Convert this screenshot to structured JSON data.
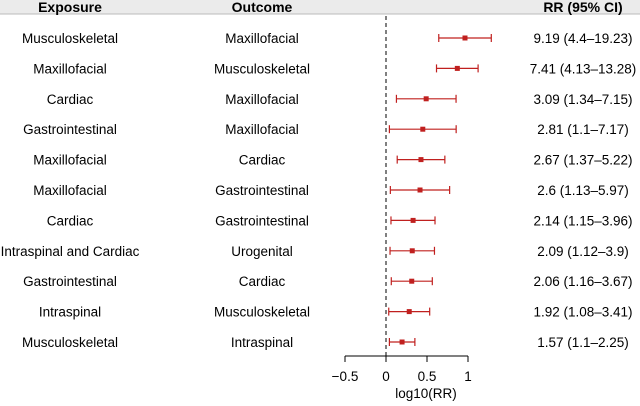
{
  "chart_data": {
    "type": "forest",
    "headers": {
      "exposure": "Exposure",
      "outcome": "Outcome",
      "rr": "RR (95% CI)"
    },
    "xlabel": "log10(RR)",
    "xlim": [
      -0.5,
      1
    ],
    "x_ticks": [
      -0.5,
      0,
      0.5,
      1
    ],
    "x_tick_labels": [
      "−0.5",
      "0",
      "0.5",
      "1"
    ],
    "reference_line": 0,
    "point_color": "#c0201f",
    "rows": [
      {
        "exposure": "Musculoskeletal",
        "outcome": "Maxillofacial",
        "rr": 9.19,
        "lo": 4.4,
        "hi": 19.23,
        "label": "9.19 (4.4–19.23)"
      },
      {
        "exposure": "Maxillofacial",
        "outcome": "Musculoskeletal",
        "rr": 7.41,
        "lo": 4.13,
        "hi": 13.28,
        "label": "7.41 (4.13–13.28)"
      },
      {
        "exposure": "Cardiac",
        "outcome": "Maxillofacial",
        "rr": 3.09,
        "lo": 1.34,
        "hi": 7.15,
        "label": "3.09 (1.34–7.15)"
      },
      {
        "exposure": "Gastrointestinal",
        "outcome": "Maxillofacial",
        "rr": 2.81,
        "lo": 1.1,
        "hi": 7.17,
        "label": "2.81 (1.1–7.17)"
      },
      {
        "exposure": "Maxillofacial",
        "outcome": "Cardiac",
        "rr": 2.67,
        "lo": 1.37,
        "hi": 5.22,
        "label": "2.67 (1.37–5.22)"
      },
      {
        "exposure": "Maxillofacial",
        "outcome": "Gastrointestinal",
        "rr": 2.6,
        "lo": 1.13,
        "hi": 5.97,
        "label": "2.6 (1.13–5.97)"
      },
      {
        "exposure": "Cardiac",
        "outcome": "Gastrointestinal",
        "rr": 2.14,
        "lo": 1.15,
        "hi": 3.96,
        "label": "2.14 (1.15–3.96)"
      },
      {
        "exposure": "Intraspinal and Cardiac",
        "outcome": "Urogenital",
        "rr": 2.09,
        "lo": 1.12,
        "hi": 3.9,
        "label": "2.09 (1.12–3.9)"
      },
      {
        "exposure": "Gastrointestinal",
        "outcome": "Cardiac",
        "rr": 2.06,
        "lo": 1.16,
        "hi": 3.67,
        "label": "2.06 (1.16–3.67)"
      },
      {
        "exposure": "Intraspinal",
        "outcome": "Musculoskeletal",
        "rr": 1.92,
        "lo": 1.08,
        "hi": 3.41,
        "label": "1.92 (1.08–3.41)"
      },
      {
        "exposure": "Musculoskeletal",
        "outcome": "Intraspinal",
        "rr": 1.57,
        "lo": 1.1,
        "hi": 2.25,
        "label": "1.57 (1.1–2.25)"
      }
    ]
  }
}
